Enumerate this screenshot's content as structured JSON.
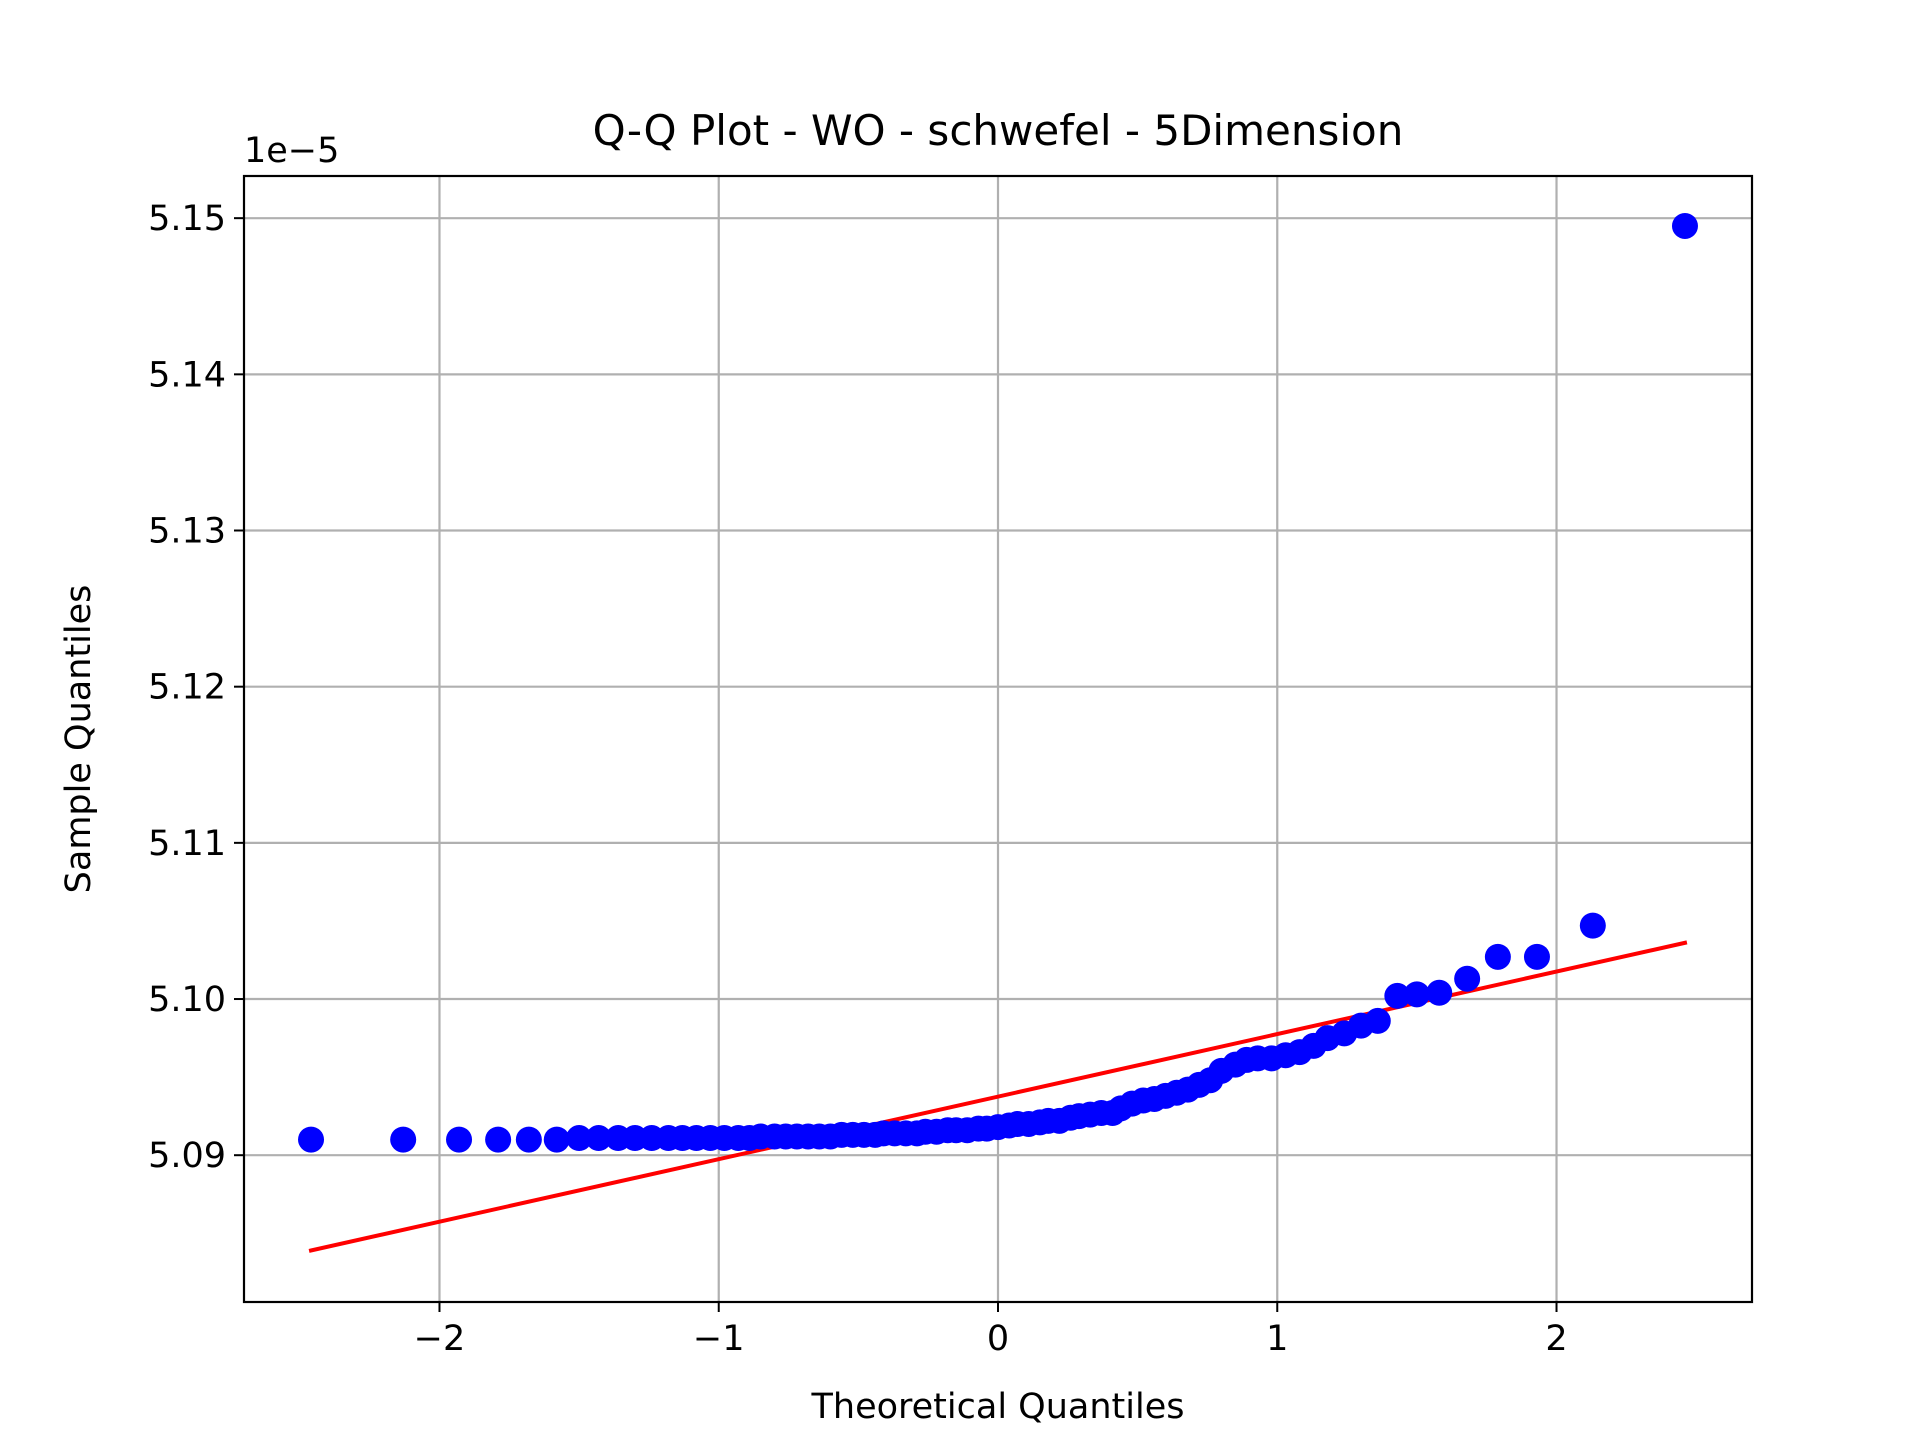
{
  "chart_data": {
    "type": "scatter",
    "title": "Q-Q Plot - WO - schwefel - 5Dimension",
    "xlabel": "Theoretical Quantiles",
    "ylabel": "Sample Quantiles",
    "y_offset_label": "1e−5",
    "xlim": [
      -2.7,
      2.7
    ],
    "ylim": [
      5.0806,
      5.1527
    ],
    "xticks": [
      -2,
      -1,
      0,
      1,
      2
    ],
    "xtick_labels": [
      "−2",
      "−1",
      "0",
      "1",
      "2"
    ],
    "yticks": [
      5.09,
      5.1,
      5.11,
      5.12,
      5.13,
      5.14,
      5.15
    ],
    "ytick_labels": [
      "5.09",
      "5.10",
      "5.11",
      "5.12",
      "5.13",
      "5.14",
      "5.15"
    ],
    "grid": true,
    "legend": "none",
    "colors": {
      "points": "#0000ff",
      "fit_line": "#ff0000"
    },
    "points": {
      "name": "",
      "x": [
        -2.46,
        -2.13,
        -1.93,
        -1.79,
        -1.68,
        -1.58,
        -1.5,
        -1.43,
        -1.36,
        -1.3,
        -1.24,
        -1.18,
        -1.13,
        -1.08,
        -1.03,
        -0.98,
        -0.93,
        -0.89,
        -0.85,
        -0.8,
        -0.76,
        -0.72,
        -0.68,
        -0.64,
        -0.6,
        -0.56,
        -0.52,
        -0.48,
        -0.44,
        -0.41,
        -0.37,
        -0.33,
        -0.29,
        -0.26,
        -0.22,
        -0.18,
        -0.15,
        -0.11,
        -0.07,
        -0.04,
        0.0,
        0.04,
        0.07,
        0.11,
        0.15,
        0.18,
        0.22,
        0.26,
        0.29,
        0.33,
        0.37,
        0.41,
        0.44,
        0.48,
        0.52,
        0.56,
        0.6,
        0.64,
        0.68,
        0.72,
        0.76,
        0.8,
        0.85,
        0.89,
        0.93,
        0.98,
        1.03,
        1.08,
        1.13,
        1.18,
        1.24,
        1.3,
        1.36,
        1.43,
        1.5,
        1.58,
        1.68,
        1.79,
        1.93,
        2.13,
        2.46
      ],
      "y": [
        5.091,
        5.091,
        5.091,
        5.091,
        5.091,
        5.091,
        5.0911,
        5.0911,
        5.0911,
        5.0911,
        5.0911,
        5.0911,
        5.0911,
        5.0911,
        5.0911,
        5.0911,
        5.0911,
        5.0911,
        5.0912,
        5.0912,
        5.0912,
        5.0912,
        5.0912,
        5.0912,
        5.0912,
        5.0913,
        5.0913,
        5.0913,
        5.0913,
        5.0914,
        5.0914,
        5.0914,
        5.0914,
        5.0915,
        5.0915,
        5.0916,
        5.0916,
        5.0916,
        5.0917,
        5.0917,
        5.0918,
        5.0919,
        5.092,
        5.092,
        5.0921,
        5.0922,
        5.0922,
        5.0924,
        5.0925,
        5.0926,
        5.0927,
        5.0927,
        5.093,
        5.0933,
        5.0935,
        5.0936,
        5.0938,
        5.094,
        5.0942,
        5.0945,
        5.0948,
        5.0954,
        5.0958,
        5.0961,
        5.0962,
        5.0962,
        5.0964,
        5.0966,
        5.097,
        5.0975,
        5.0978,
        5.0983,
        5.0986,
        5.1002,
        5.1003,
        5.1004,
        5.1013,
        5.1027,
        5.1027,
        5.1047,
        5.1495
      ]
    },
    "fit_line": {
      "x": [
        -2.46,
        2.46
      ],
      "y": [
        5.0839,
        5.1036
      ]
    }
  }
}
